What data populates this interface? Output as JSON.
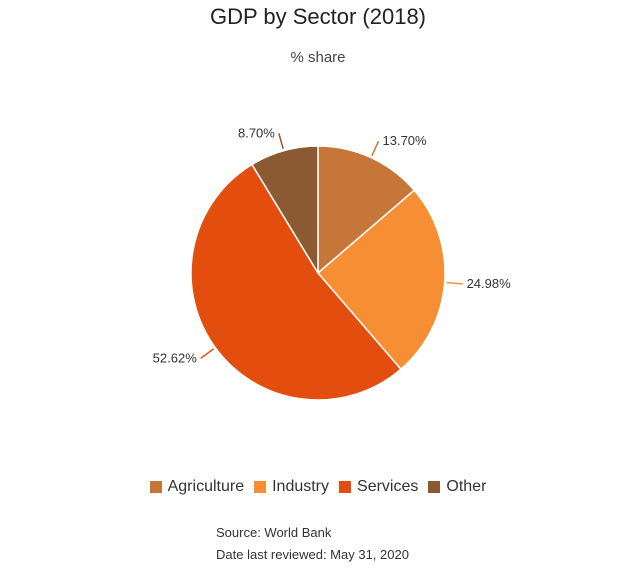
{
  "chart_data": {
    "type": "pie",
    "title": "GDP by Sector (2018)",
    "subtitle": "% share",
    "slices": [
      {
        "label": "Agriculture",
        "value": 13.7,
        "display": "13.70%",
        "color": "#C57638"
      },
      {
        "label": "Industry",
        "value": 24.98,
        "display": "24.98%",
        "color": "#F68F33"
      },
      {
        "label": "Services",
        "value": 52.62,
        "display": "52.62%",
        "color": "#E34E0E"
      },
      {
        "label": "Other",
        "value": 8.7,
        "display": "8.70%",
        "color": "#8B5A33"
      }
    ],
    "legend_position": "bottom",
    "start_angle": "top, clockwise"
  },
  "footer": {
    "source": "Source: World Bank",
    "reviewed": "Date last reviewed: May 31, 2020"
  }
}
